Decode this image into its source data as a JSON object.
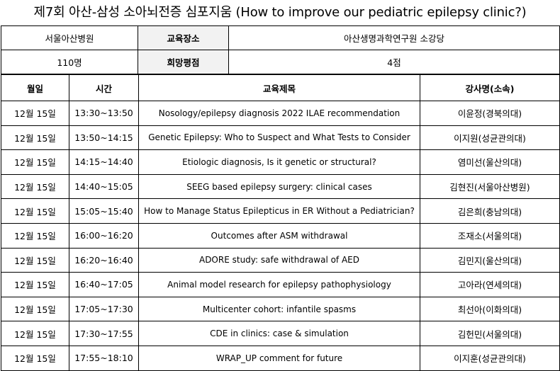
{
  "title": "제7회 아산-삼성 소아뇌전증 심포지움 (How to improve our pediatric epilepsy clinic?)",
  "info": {
    "host": "서울아산병원",
    "venue_label": "교육장소",
    "venue": "아산생명과학연구원 소강당",
    "attendees": "110명",
    "rating_label": "희망평점",
    "rating": "4점"
  },
  "schedule": {
    "headers": [
      "월일",
      "시간",
      "교육제목",
      "강사명(소속)"
    ],
    "rows": [
      {
        "date": "12월 15일",
        "time": "13:30~13:50",
        "topic": "Nosology/epilepsy diagnosis 2022 ILAE recommendation",
        "speaker": "이윤정(경북의대)"
      },
      {
        "date": "12월 15일",
        "time": "13:50~14:15",
        "topic": "Genetic Epilepsy: Who to Suspect and What Tests to Consider",
        "speaker": "이지원(성균관의대)"
      },
      {
        "date": "12월 15일",
        "time": "14:15~14:40",
        "topic": "Etiologic diagnosis, Is it genetic or structural?",
        "speaker": "염미선(울산의대)"
      },
      {
        "date": "12월 15일",
        "time": "14:40~15:05",
        "topic": "SEEG based epilepsy surgery: clinical cases",
        "speaker": "김현진(서울아산병원)"
      },
      {
        "date": "12월 15일",
        "time": "15:05~15:40",
        "topic": "How to Manage Status Epilepticus in ER Without a Pediatrician?",
        "speaker": "김은희(충남의대)"
      },
      {
        "date": "12월 15일",
        "time": "16:00~16:20",
        "topic": "Outcomes after ASM withdrawal",
        "speaker": "조재소(서울의대)"
      },
      {
        "date": "12월 15일",
        "time": "16:20~16:40",
        "topic": "ADORE study: safe withdrawal of AED",
        "speaker": "김민지(울산의대)"
      },
      {
        "date": "12월 15일",
        "time": "16:40~17:05",
        "topic": "Animal model research for epilepsy pathophysiology",
        "speaker": "고아라(연세의대)"
      },
      {
        "date": "12월 15일",
        "time": "17:05~17:30",
        "topic": "Multicenter cohort: infantile spasms",
        "speaker": "최선아(이화의대)"
      },
      {
        "date": "12월 15일",
        "time": "17:30~17:55",
        "topic": "CDE in clinics: case & simulation",
        "speaker": "김헌민(서울의대)"
      },
      {
        "date": "12월 15일",
        "time": "17:55~18:10",
        "topic": "WRAP_UP comment for future",
        "speaker": "이지훈(성균관의대)"
      }
    ]
  }
}
